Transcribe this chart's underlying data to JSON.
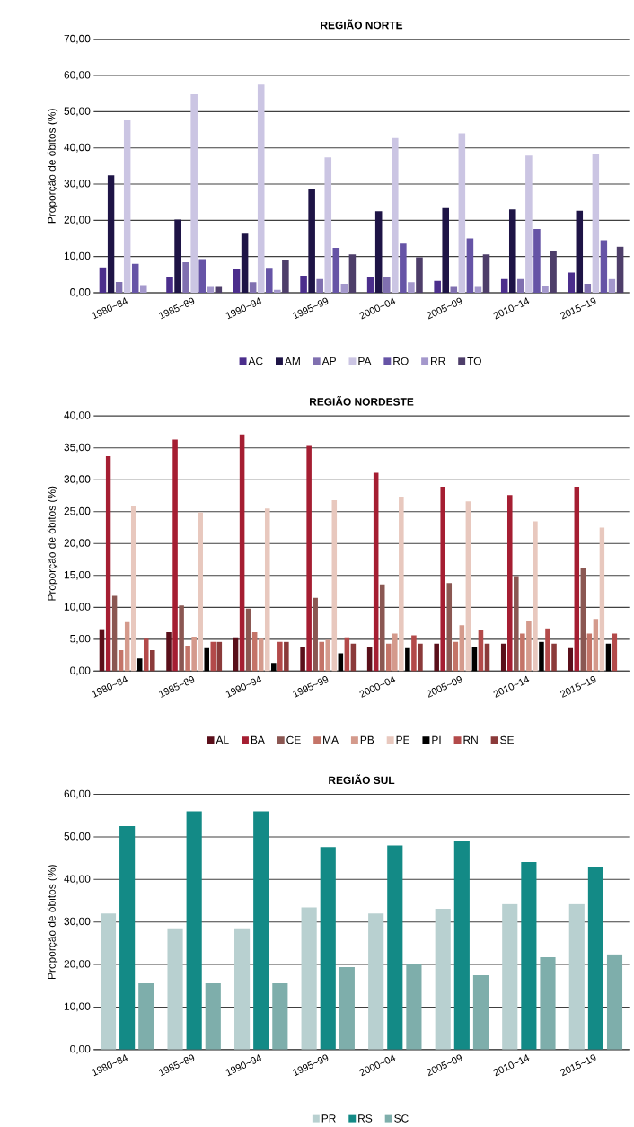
{
  "chart_data": [
    {
      "type": "bar",
      "title": "REGIÃO NORTE",
      "ylabel": "Proporção de óbitos (%)",
      "categories": [
        "1980~84",
        "1985~89",
        "1990~94",
        "1995~99",
        "2000~04",
        "2005~09",
        "2010~14",
        "2015~19"
      ],
      "series": [
        {
          "name": "AC",
          "color": "#4b2e8c",
          "values": [
            7.0,
            4.3,
            6.5,
            4.7,
            4.3,
            3.3,
            3.8,
            5.6
          ]
        },
        {
          "name": "AM",
          "color": "#1e1446",
          "values": [
            32.4,
            20.2,
            16.3,
            28.5,
            22.5,
            23.4,
            23.0,
            22.6
          ]
        },
        {
          "name": "AP",
          "color": "#8070b0",
          "values": [
            3.0,
            8.4,
            2.9,
            3.8,
            4.3,
            1.6,
            3.8,
            2.5
          ]
        },
        {
          "name": "PA",
          "color": "#cbc5e3",
          "values": [
            47.6,
            54.8,
            57.5,
            37.4,
            42.7,
            44.0,
            37.9,
            38.3
          ]
        },
        {
          "name": "RO",
          "color": "#6654a6",
          "values": [
            8.0,
            9.3,
            6.9,
            12.4,
            13.6,
            15.0,
            17.6,
            14.5
          ]
        },
        {
          "name": "RR",
          "color": "#a498cc",
          "values": [
            2.1,
            1.6,
            0.8,
            2.5,
            2.9,
            1.6,
            2.0,
            3.8
          ]
        },
        {
          "name": "TO",
          "color": "#4e3e6a",
          "values": [
            0,
            1.6,
            9.2,
            10.6,
            9.8,
            10.6,
            11.5,
            12.7
          ]
        }
      ],
      "ylim": [
        0,
        70
      ],
      "yticks": [
        {
          "value": 0,
          "label": "0,00"
        },
        {
          "value": 10,
          "label": "10,00"
        },
        {
          "value": 20,
          "label": "20,00"
        },
        {
          "value": 30,
          "label": "30,00"
        },
        {
          "value": 40,
          "label": "40,00"
        },
        {
          "value": 50,
          "label": "50,00"
        },
        {
          "value": 60,
          "label": "60,00"
        },
        {
          "value": 70,
          "label": "70,00"
        }
      ],
      "grid": "y",
      "legend": "bottom"
    },
    {
      "type": "bar",
      "title": "REGIÃO NORDESTE",
      "ylabel": "Proporção de óbitos (%)",
      "categories": [
        "1980~84",
        "1985~89",
        "1990~94",
        "1995~99",
        "2000~04",
        "2005~09",
        "2010~14",
        "2015~19"
      ],
      "series": [
        {
          "name": "AL",
          "color": "#5a0f1a",
          "values": [
            6.6,
            6.1,
            5.3,
            3.8,
            3.8,
            4.3,
            4.3,
            3.6
          ]
        },
        {
          "name": "BA",
          "color": "#a51e32",
          "values": [
            33.7,
            36.3,
            37.1,
            35.3,
            31.1,
            28.9,
            27.6,
            28.9
          ]
        },
        {
          "name": "CE",
          "color": "#8b5752",
          "values": [
            11.8,
            10.3,
            9.8,
            11.5,
            13.6,
            13.8,
            14.9,
            16.1
          ]
        },
        {
          "name": "MA",
          "color": "#c47468",
          "values": [
            3.3,
            4.0,
            6.1,
            4.6,
            4.3,
            4.6,
            5.9,
            5.9
          ]
        },
        {
          "name": "PB",
          "color": "#d49a8c",
          "values": [
            7.7,
            5.4,
            5.1,
            4.9,
            5.9,
            7.2,
            7.9,
            8.2
          ]
        },
        {
          "name": "PE",
          "color": "#e8c8be",
          "values": [
            25.8,
            24.9,
            25.5,
            26.8,
            27.3,
            26.6,
            23.5,
            22.5
          ]
        },
        {
          "name": "PI",
          "color": "#000000",
          "values": [
            2.0,
            3.6,
            1.3,
            2.8,
            3.6,
            3.8,
            4.6,
            4.3
          ]
        },
        {
          "name": "RN",
          "color": "#b34a4a",
          "values": [
            5.1,
            4.6,
            4.6,
            5.3,
            5.6,
            6.4,
            6.7,
            5.9
          ]
        },
        {
          "name": "SE",
          "color": "#8b3a3a",
          "values": [
            3.3,
            4.6,
            4.6,
            4.3,
            4.3,
            4.3,
            4.3,
            null
          ]
        }
      ],
      "ylim": [
        0,
        40
      ],
      "yticks": [
        {
          "value": 0,
          "label": "0,00"
        },
        {
          "value": 5,
          "label": "5,00"
        },
        {
          "value": 10,
          "label": "10,00"
        },
        {
          "value": 15,
          "label": "15,00"
        },
        {
          "value": 20,
          "label": "20,00"
        },
        {
          "value": 25,
          "label": "25,00"
        },
        {
          "value": 30,
          "label": "30,00"
        },
        {
          "value": 35,
          "label": "35,00"
        },
        {
          "value": 40,
          "label": "40,00"
        }
      ],
      "grid": "y",
      "legend": "bottom"
    },
    {
      "type": "bar",
      "title": "REGIÃO SUL",
      "ylabel": "Proporção de óbitos (%)",
      "categories": [
        "1980~84",
        "1985~89",
        "1990~94",
        "1995~99",
        "2000~04",
        "2005~09",
        "2010~14",
        "2015~19"
      ],
      "series": [
        {
          "name": "PR",
          "color": "#b8d0d0",
          "values": [
            32.0,
            28.5,
            28.5,
            33.4,
            32.0,
            33.1,
            34.2,
            34.2
          ]
        },
        {
          "name": "RS",
          "color": "#138a86",
          "values": [
            52.5,
            56.0,
            56.0,
            47.6,
            48.0,
            49.0,
            44.1,
            42.9
          ]
        },
        {
          "name": "SC",
          "color": "#7eaeab",
          "values": [
            15.6,
            15.6,
            15.6,
            19.4,
            20.0,
            17.5,
            21.7,
            22.4
          ]
        }
      ],
      "ylim": [
        0,
        60
      ],
      "yticks": [
        {
          "value": 0,
          "label": "0,00"
        },
        {
          "value": 10,
          "label": "10,00"
        },
        {
          "value": 20,
          "label": "20,00"
        },
        {
          "value": 30,
          "label": "30,00"
        },
        {
          "value": 40,
          "label": "40,00"
        },
        {
          "value": 50,
          "label": "50,00"
        },
        {
          "value": 60,
          "label": "60,00"
        }
      ],
      "grid": "y",
      "legend": "bottom"
    }
  ]
}
